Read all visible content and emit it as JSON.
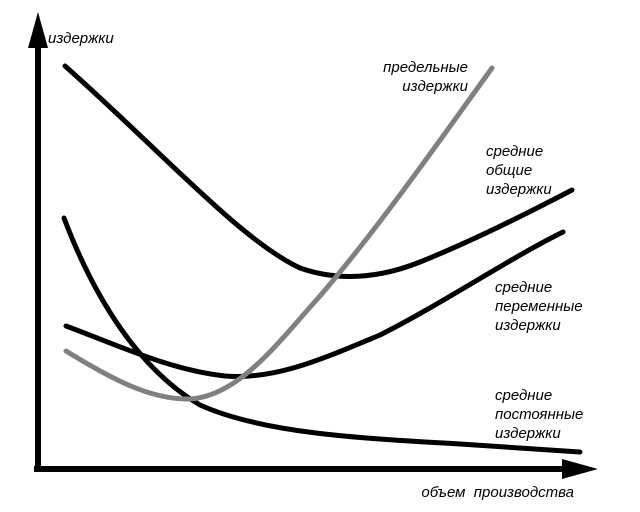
{
  "axes": {
    "y_label": "издержки",
    "x_label": "объем  производства"
  },
  "curves": {
    "marginal": {
      "label": [
        "предельные",
        "издержки"
      ],
      "color": "#808080"
    },
    "average_total": {
      "label": [
        "средние",
        "общие",
        "издержки"
      ],
      "color": "#000000"
    },
    "average_variable": {
      "label": [
        "средние",
        "переменные",
        "издержки"
      ],
      "color": "#000000"
    },
    "average_fixed": {
      "label": [
        "средние",
        "постоянные",
        "издержки"
      ],
      "color": "#000000"
    }
  }
}
